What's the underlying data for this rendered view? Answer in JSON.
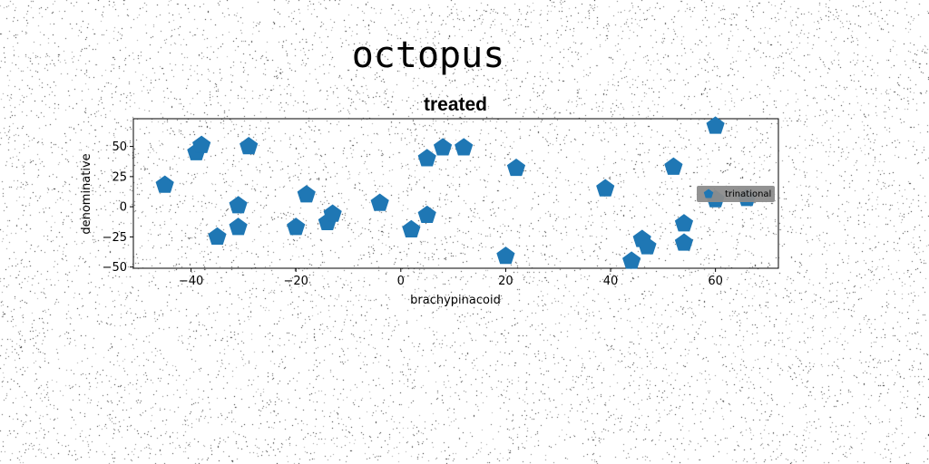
{
  "figure": {
    "suptitle": "octopus"
  },
  "chart_data": {
    "type": "scatter",
    "title": "treated",
    "xlabel": "brachypinacoid",
    "ylabel": "denominative",
    "xlim": [
      -51,
      72
    ],
    "ylim": [
      -51,
      73
    ],
    "xticks": [
      -40,
      -20,
      0,
      20,
      40,
      60
    ],
    "yticks": [
      -50,
      -25,
      0,
      25,
      50
    ],
    "grid": false,
    "legend_position": "center-right",
    "series": [
      {
        "name": "trinational",
        "marker": "pentagon",
        "color": "#1f77b4",
        "points": [
          {
            "x": -45,
            "y": 18
          },
          {
            "x": -39,
            "y": 45
          },
          {
            "x": -38,
            "y": 51
          },
          {
            "x": -35,
            "y": -25
          },
          {
            "x": -31,
            "y": 1
          },
          {
            "x": -31,
            "y": -17
          },
          {
            "x": -29,
            "y": 50
          },
          {
            "x": -20,
            "y": -17
          },
          {
            "x": -18,
            "y": 10
          },
          {
            "x": -14,
            "y": -13
          },
          {
            "x": -13,
            "y": -6
          },
          {
            "x": -4,
            "y": 3
          },
          {
            "x": 2,
            "y": -19
          },
          {
            "x": 5,
            "y": 40
          },
          {
            "x": 5,
            "y": -7
          },
          {
            "x": 8,
            "y": 49
          },
          {
            "x": 12,
            "y": 49
          },
          {
            "x": 20,
            "y": -41
          },
          {
            "x": 22,
            "y": 32
          },
          {
            "x": 39,
            "y": 15
          },
          {
            "x": 44,
            "y": -45
          },
          {
            "x": 46,
            "y": -27
          },
          {
            "x": 47,
            "y": -33
          },
          {
            "x": 52,
            "y": 33
          },
          {
            "x": 54,
            "y": -14
          },
          {
            "x": 54,
            "y": -30
          },
          {
            "x": 60,
            "y": 67
          },
          {
            "x": 60,
            "y": 6
          },
          {
            "x": 66,
            "y": 7
          }
        ]
      }
    ]
  },
  "colors": {
    "marker": "#1f77b4",
    "legend_bg": "#8c8c8c"
  }
}
